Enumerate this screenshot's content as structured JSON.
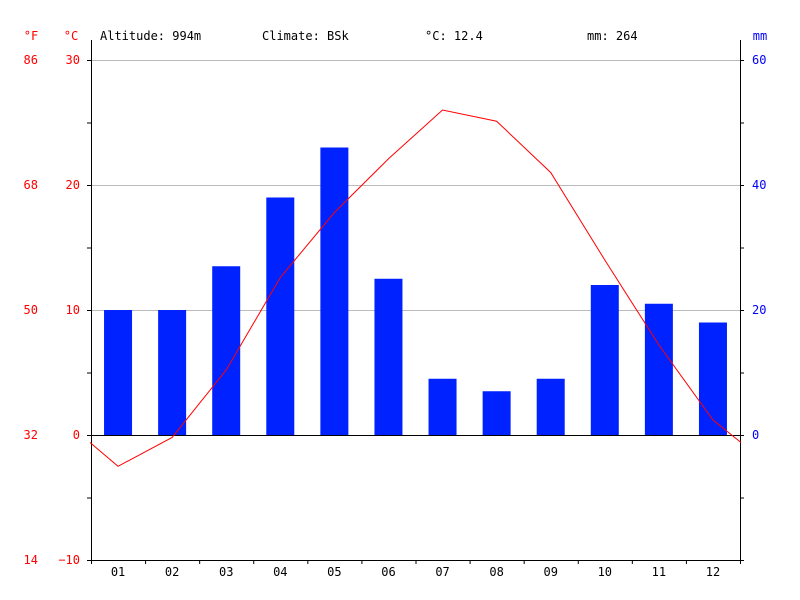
{
  "header": {
    "fahrenheit_unit": "°F",
    "celsius_unit": "°C",
    "altitude": "Altitude: 994m",
    "climate": "Climate: BSk",
    "mean_temp": "°C: 12.4",
    "precip_total": "mm: 264",
    "mm_unit": "mm"
  },
  "colors": {
    "temperature": "#ff0000",
    "precipitation": "#0022ff",
    "axis": "#000000",
    "grid": "#bbbbbb"
  },
  "chart_data": {
    "type": "bar+line",
    "categories": [
      "01",
      "02",
      "03",
      "04",
      "05",
      "06",
      "07",
      "08",
      "09",
      "10",
      "11",
      "12"
    ],
    "series": [
      {
        "type": "bar",
        "axis": "right",
        "values": [
          20,
          20,
          27,
          38,
          46,
          25,
          9,
          7,
          9,
          24,
          21,
          18
        ]
      },
      {
        "type": "line",
        "axis": "left",
        "values": [
          -2.5,
          -0.2,
          5.2,
          12.6,
          17.8,
          22.1,
          26.0,
          25.1,
          21.0,
          14.0,
          7.2,
          1.2
        ]
      }
    ],
    "line_edge_values": [
      -0.6,
      -0.6
    ],
    "left_axis": {
      "min": -10,
      "max": 30,
      "ticks": [
        -10,
        0,
        10,
        20,
        30
      ],
      "tick_labels": [
        "−10",
        "0",
        "10",
        "20",
        "30"
      ]
    },
    "fahrenheit_ticks": [
      "14",
      "32",
      "50",
      "68",
      "86"
    ],
    "right_axis": {
      "min": -20,
      "max": 60,
      "ticks": [
        0,
        20,
        40,
        60
      ],
      "tick_labels": [
        "0",
        "20",
        "40",
        "60"
      ]
    },
    "grid": true
  }
}
